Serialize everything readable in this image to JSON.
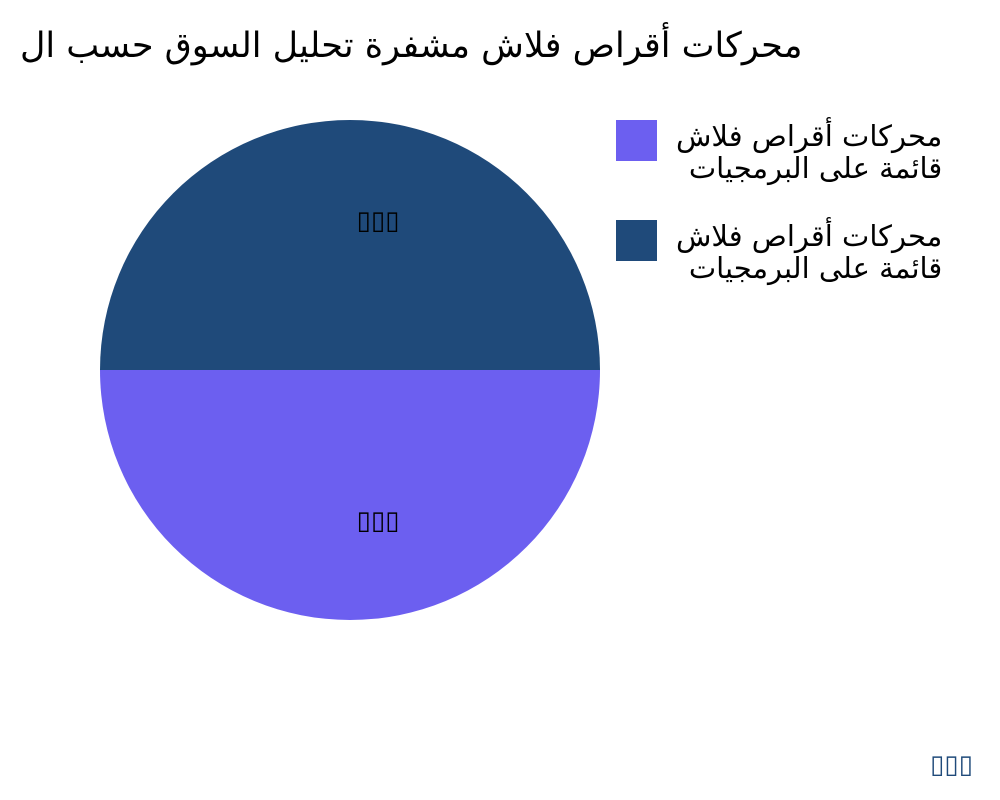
{
  "chart_data": {
    "type": "pie",
    "title": "محركات أقراص فلاش مشفرة تحليل السوق حسب ال",
    "slices": [
      {
        "name_lines": [
          "محركات أقراص فلاش",
          "قائمة على البرمجيات"
        ],
        "value": 50,
        "label": "▯▯▯",
        "color": "#6c5ff0"
      },
      {
        "name_lines": [
          "محركات أقراص فلاش",
          "قائمة على البرمجيات"
        ],
        "value": 50,
        "label": "▯▯▯",
        "color": "#1f4a7a"
      }
    ],
    "legend_placement": "right"
  },
  "watermark": "▯▯▯"
}
